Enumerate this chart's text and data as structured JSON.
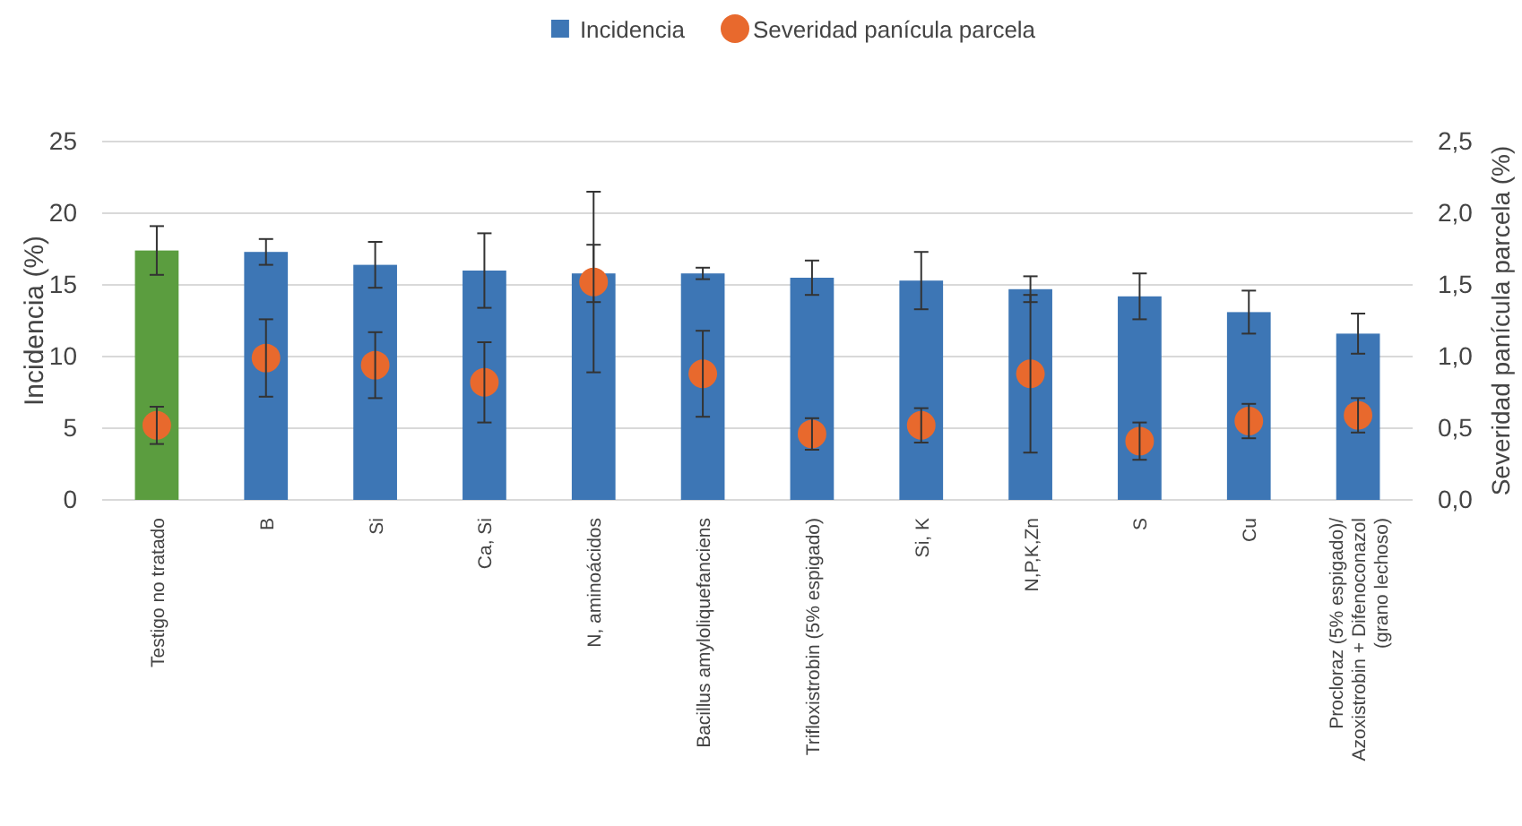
{
  "chart_data": {
    "type": "bar",
    "categories": [
      "Testigo no tratado",
      "B",
      "Si",
      "Ca, Si",
      "N, aminoácidos",
      "Bacillus amyloliquefanciens",
      "Trifloxistrobin (5% espigado)",
      "Si, K",
      "N,P,K,Zn",
      "S",
      "Cu",
      "Procloraz (5% espigado)/\nAzoxistrobin + Difenoconazol\n(grano lechoso)"
    ],
    "ylabel": "Incidencia (%)",
    "y2label": "Severidad panícula parcela (%)",
    "ylim": [
      0,
      25
    ],
    "yticks": [
      0,
      5,
      10,
      15,
      20,
      25
    ],
    "y2lim": [
      0,
      2.5
    ],
    "y2ticks": [
      {
        "value": 0,
        "label": "0,0"
      },
      {
        "value": 0.5,
        "label": "0,5"
      },
      {
        "value": 1,
        "label": "1,0"
      },
      {
        "value": 1.5,
        "label": "1,5"
      },
      {
        "value": 2,
        "label": "2,0"
      },
      {
        "value": 2.5,
        "label": "2,5"
      }
    ],
    "grid": "y",
    "legend": "top",
    "series": [
      {
        "name": "Incidencia",
        "color": "#3d76b5",
        "colors": [
          "#5b9d3f",
          "#3d76b5",
          "#3d76b5",
          "#3d76b5",
          "#3d76b5",
          "#3d76b5",
          "#3d76b5",
          "#3d76b5",
          "#3d76b5",
          "#3d76b5",
          "#3d76b5",
          "#3d76b5"
        ],
        "values": [
          17.4,
          17.3,
          16.4,
          16.0,
          15.8,
          15.8,
          15.5,
          15.3,
          14.7,
          14.2,
          13.1,
          11.6
        ],
        "errors": [
          1.7,
          0.9,
          1.6,
          2.6,
          2.0,
          0.4,
          1.2,
          2.0,
          0.9,
          1.6,
          1.5,
          1.4
        ]
      },
      {
        "name": "Severidad panícula parcela",
        "type": "scatter",
        "axis": "y2",
        "marker": "circle",
        "color": "#e8692d",
        "values": [
          0.52,
          0.99,
          0.94,
          0.82,
          1.52,
          0.88,
          0.46,
          0.52,
          0.88,
          0.41,
          0.55,
          0.59
        ],
        "errors": [
          0.13,
          0.27,
          0.23,
          0.28,
          0.63,
          0.3,
          0.11,
          0.12,
          0.55,
          0.13,
          0.12,
          0.12
        ]
      }
    ]
  }
}
